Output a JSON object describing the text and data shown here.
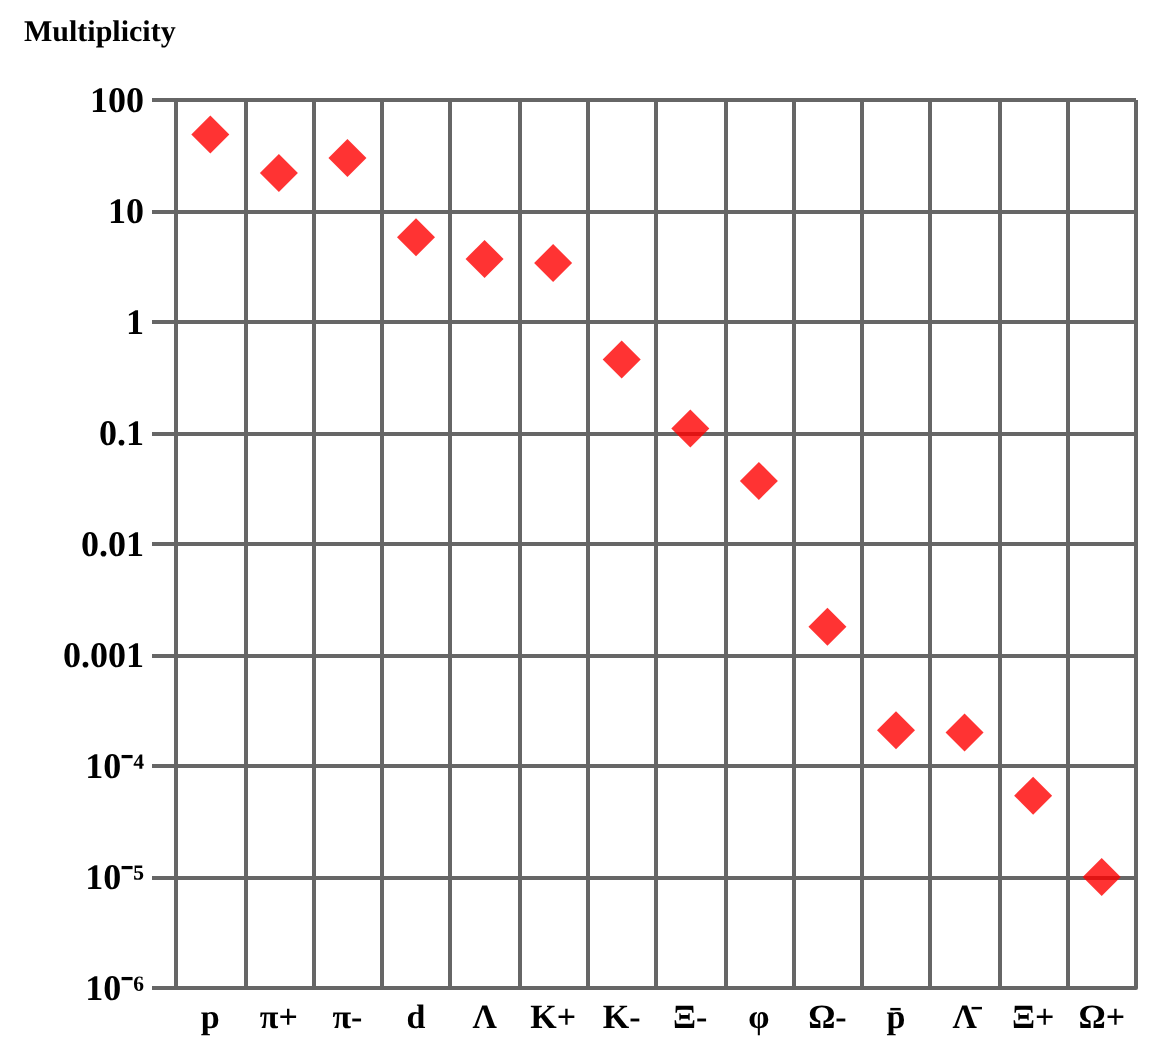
{
  "chart_data": {
    "type": "scatter",
    "ylabel": "Multiplicity",
    "categories": [
      "p",
      "π+",
      "π-",
      "d",
      "Λ",
      "K+",
      "K-",
      "Ξ-",
      "φ",
      "Ω-",
      "p̄",
      "Λ̄",
      "Ξ+",
      "Ω+"
    ],
    "values": [
      49,
      22,
      30,
      5.8,
      3.7,
      3.4,
      0.46,
      0.11,
      0.037,
      0.0018,
      0.00021,
      0.0002,
      5.4e-05,
      1e-05
    ],
    "color": "#ff0000",
    "marker": "diamond",
    "log": "y",
    "grid": true,
    "ylim": [
      1e-06,
      100
    ],
    "yticks": [
      {
        "value": 1e-06,
        "label": "10⁻⁶"
      },
      {
        "value": 1e-05,
        "label": "10⁻⁵"
      },
      {
        "value": 0.0001,
        "label": "10⁻⁴"
      },
      0.001,
      0.01,
      0.1,
      1,
      10,
      100
    ]
  }
}
